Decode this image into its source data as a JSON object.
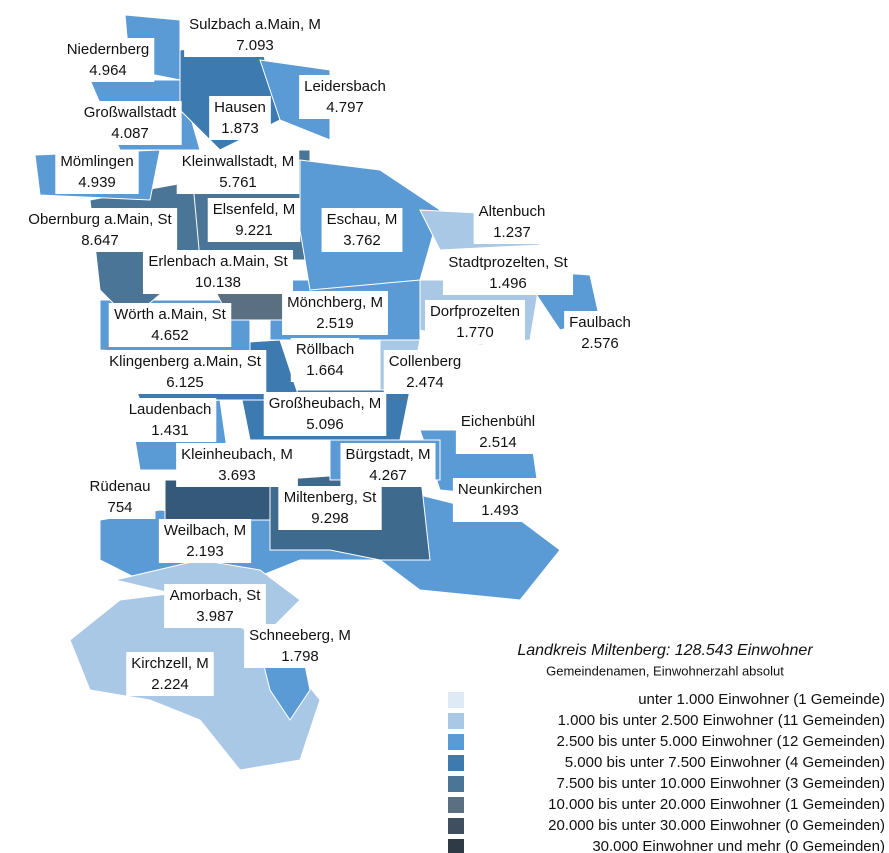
{
  "title": "Landkreis Miltenberg: 128.543 Einwohner",
  "subtitle": "Gemeindenamen, Einwohnerzahl absolut",
  "municipalities": [
    {
      "name": "Sulzbach a.Main, M",
      "population": "7.093"
    },
    {
      "name": "Niedernberg",
      "population": "4.964"
    },
    {
      "name": "Leidersbach",
      "population": "4.797"
    },
    {
      "name": "Hausen",
      "population": "1.873"
    },
    {
      "name": "Großwallstadt",
      "population": "4.087"
    },
    {
      "name": "Mömlingen",
      "population": "4.939"
    },
    {
      "name": "Kleinwallstadt, M",
      "population": "5.761"
    },
    {
      "name": "Obernburg a.Main, St",
      "population": "8.647"
    },
    {
      "name": "Elsenfeld, M",
      "population": "9.221"
    },
    {
      "name": "Eschau, M",
      "population": "3.762"
    },
    {
      "name": "Altenbuch",
      "population": "1.237"
    },
    {
      "name": "Erlenbach a.Main, St",
      "population": "10.138"
    },
    {
      "name": "Stadtprozelten, St",
      "population": "1.496"
    },
    {
      "name": "Mönchberg, M",
      "population": "2.519"
    },
    {
      "name": "Dorfprozelten",
      "population": "1.770"
    },
    {
      "name": "Faulbach",
      "population": "2.576"
    },
    {
      "name": "Wörth a.Main, St",
      "population": "4.652"
    },
    {
      "name": "Klingenberg a.Main, St",
      "population": "6.125"
    },
    {
      "name": "Röllbach",
      "population": "1.664"
    },
    {
      "name": "Collenberg",
      "population": "2.474"
    },
    {
      "name": "Laudenbach",
      "population": "1.431"
    },
    {
      "name": "Großheubach, M",
      "population": "5.096"
    },
    {
      "name": "Eichenbühl",
      "population": "2.514"
    },
    {
      "name": "Kleinheubach, M",
      "population": "3.693"
    },
    {
      "name": "Bürgstadt, M",
      "population": "4.267"
    },
    {
      "name": "Rüdenau",
      "population": "754"
    },
    {
      "name": "Neunkirchen",
      "population": "1.493"
    },
    {
      "name": "Miltenberg, St",
      "population": "9.298"
    },
    {
      "name": "Weilbach, M",
      "population": "2.193"
    },
    {
      "name": "Amorbach, St",
      "population": "3.987"
    },
    {
      "name": "Schneeberg, M",
      "population": "1.798"
    },
    {
      "name": "Kirchzell, M",
      "population": "2.224"
    }
  ],
  "legend": [
    {
      "label": "unter 1.000 Einwohner (1 Gemeinde)",
      "color": "#deebf7"
    },
    {
      "label": "1.000 bis unter 2.500 Einwohner (11 Gemeinden)",
      "color": "#a9c8e6"
    },
    {
      "label": "2.500 bis unter 5.000 Einwohner (12 Gemeinden)",
      "color": "#5b9bd5"
    },
    {
      "label": "5.000 bis unter 7.500 Einwohner (4 Gemeinden)",
      "color": "#3d7ab0"
    },
    {
      "label": "7.500 bis unter 10.000 Einwohner (3 Gemeinden)",
      "color": "#4a7596"
    },
    {
      "label": "10.000 bis unter 20.000 Einwohner (1 Gemeinden)",
      "color": "#5a6f82"
    },
    {
      "label": "20.000 bis unter 30.000 Einwohner (0 Gemeinden)",
      "color": "#3f4f5f"
    },
    {
      "label": "30.000 Einwohner und mehr (0 Gemeinden)",
      "color": "#2e3a46"
    }
  ]
}
